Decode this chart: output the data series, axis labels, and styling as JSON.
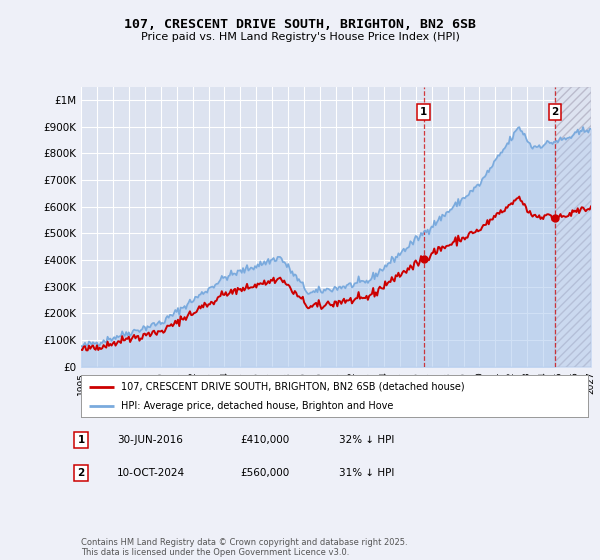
{
  "title": "107, CRESCENT DRIVE SOUTH, BRIGHTON, BN2 6SB",
  "subtitle": "Price paid vs. HM Land Registry's House Price Index (HPI)",
  "background_color": "#eef0f8",
  "plot_bg_color": "#dde3f0",
  "grid_color": "#ffffff",
  "hpi_color": "#7aaadd",
  "hpi_fill_color": "#aac8ee",
  "price_color": "#cc0000",
  "transaction1_year": 2016.497,
  "transaction1_price": 410000,
  "transaction1_label": "30-JUN-2016",
  "transaction1_hpi_pct": "32%",
  "transaction2_year": 2024.775,
  "transaction2_price": 560000,
  "transaction2_label": "10-OCT-2024",
  "transaction2_hpi_pct": "31%",
  "legend_label1": "107, CRESCENT DRIVE SOUTH, BRIGHTON, BN2 6SB (detached house)",
  "legend_label2": "HPI: Average price, detached house, Brighton and Hove",
  "footer": "Contains HM Land Registry data © Crown copyright and database right 2025.\nThis data is licensed under the Open Government Licence v3.0.",
  "ylim_max": 1050000,
  "yticks": [
    0,
    100000,
    200000,
    300000,
    400000,
    500000,
    600000,
    700000,
    800000,
    900000,
    1000000
  ],
  "ytick_labels": [
    "£0",
    "£100K",
    "£200K",
    "£300K",
    "£400K",
    "£500K",
    "£600K",
    "£700K",
    "£800K",
    "£900K",
    "£1M"
  ],
  "xmin": 1995,
  "xmax": 2027
}
